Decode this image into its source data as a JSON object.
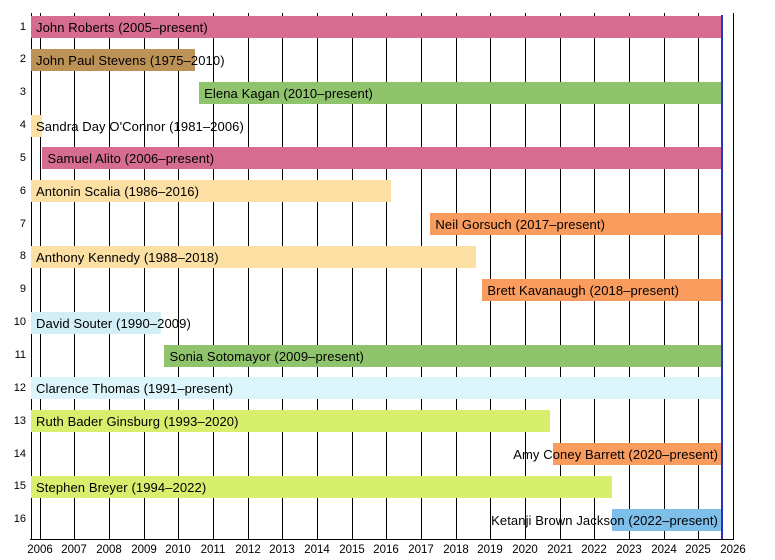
{
  "chart_data": {
    "type": "bar",
    "variant": "gantt-timeline",
    "title": "",
    "xlabel": "",
    "ylabel": "",
    "x_axis": {
      "range_start": 2005.75,
      "range_end": 2026,
      "tick_labels": [
        "2006",
        "2007",
        "2008",
        "2009",
        "2010",
        "2011",
        "2012",
        "2013",
        "2014",
        "2015",
        "2016",
        "2017",
        "2018",
        "2019",
        "2020",
        "2021",
        "2022",
        "2023",
        "2024",
        "2025",
        "2026"
      ]
    },
    "today_line_year": 2025.69,
    "grid": "on",
    "rows": [
      {
        "num": "1",
        "label": "John Roberts (2005–present)",
        "start": 2005.75,
        "end": 2025.69,
        "present": true,
        "color": "#d66d90",
        "align": "left"
      },
      {
        "num": "2",
        "label": "John Paul Stevens (1975–2010)",
        "start": 2005.75,
        "end": 2010.49,
        "present": false,
        "color": "#bc9257",
        "align": "left"
      },
      {
        "num": "3",
        "label": "Elena Kagan (2010–present)",
        "start": 2010.6,
        "end": 2025.69,
        "present": true,
        "color": "#8fc46d",
        "align": "left"
      },
      {
        "num": "4",
        "label": "Sandra Day O'Connor (1981–2006)",
        "start": 2005.75,
        "end": 2006.08,
        "present": false,
        "color": "#fbdfa3",
        "align": "left"
      },
      {
        "num": "5",
        "label": "Samuel Alito (2006–present)",
        "start": 2006.08,
        "end": 2025.69,
        "present": true,
        "color": "#d66d90",
        "align": "left"
      },
      {
        "num": "6",
        "label": "Antonin Scalia (1986–2016)",
        "start": 2005.75,
        "end": 2016.12,
        "present": false,
        "color": "#fbdfa3",
        "align": "left"
      },
      {
        "num": "7",
        "label": "Neil Gorsuch (2017–present)",
        "start": 2017.27,
        "end": 2025.69,
        "present": true,
        "color": "#f99c5e",
        "align": "left"
      },
      {
        "num": "8",
        "label": "Anthony Kennedy (1988–2018)",
        "start": 2005.75,
        "end": 2018.58,
        "present": false,
        "color": "#fbdfa3",
        "align": "left"
      },
      {
        "num": "9",
        "label": "Brett Kavanaugh (2018–present)",
        "start": 2018.77,
        "end": 2025.69,
        "present": true,
        "color": "#f99c5e",
        "align": "left"
      },
      {
        "num": "10",
        "label": "David Souter (1990–2009)",
        "start": 2005.75,
        "end": 2009.49,
        "present": false,
        "color": "#d2eef7",
        "align": "left"
      },
      {
        "num": "11",
        "label": "Sonia Sotomayor (2009–present)",
        "start": 2009.6,
        "end": 2025.69,
        "present": true,
        "color": "#8fc46d",
        "align": "left"
      },
      {
        "num": "12",
        "label": "Clarence Thomas (1991–present)",
        "start": 2005.75,
        "end": 2025.69,
        "present": true,
        "color": "#dbf5fa",
        "align": "left"
      },
      {
        "num": "13",
        "label": "Ruth Bader Ginsburg (1993–2020)",
        "start": 2005.75,
        "end": 2020.71,
        "present": false,
        "color": "#d7ef6d",
        "align": "left"
      },
      {
        "num": "14",
        "label": "Amy Coney Barrett (2020–present)",
        "start": 2020.82,
        "end": 2025.69,
        "present": true,
        "color": "#f99c5e",
        "align": "right"
      },
      {
        "num": "15",
        "label": "Stephen Breyer (1994–2022)",
        "start": 2005.75,
        "end": 2022.5,
        "present": false,
        "color": "#d7ef6d",
        "align": "left"
      },
      {
        "num": "16",
        "label": "Ketanji Brown Jackson (2022–present)",
        "start": 2022.5,
        "end": 2025.69,
        "present": true,
        "color": "#7dbfe9",
        "align": "right"
      }
    ]
  },
  "colors": {
    "background": "#ffffff",
    "gridline": "#000000",
    "axis_line": "#000000",
    "today_line": "#2b32bb",
    "label_text": "#000000"
  }
}
